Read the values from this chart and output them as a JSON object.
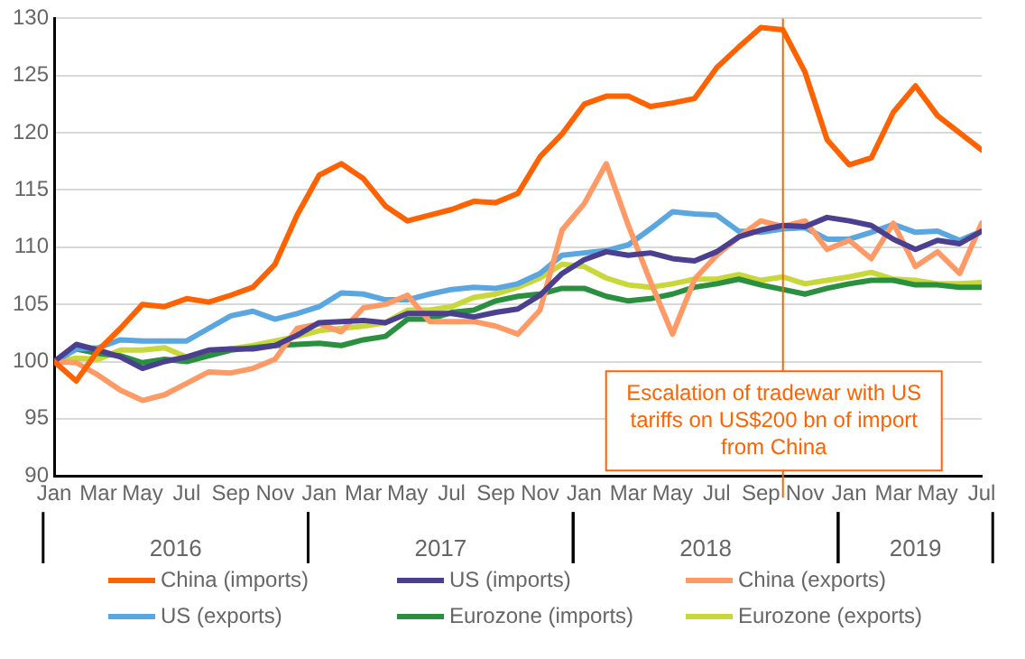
{
  "chart_data": {
    "type": "line",
    "x": [
      "2016-01",
      "2016-02",
      "2016-03",
      "2016-04",
      "2016-05",
      "2016-06",
      "2016-07",
      "2016-08",
      "2016-09",
      "2016-10",
      "2016-11",
      "2016-12",
      "2017-01",
      "2017-02",
      "2017-03",
      "2017-04",
      "2017-05",
      "2017-06",
      "2017-07",
      "2017-08",
      "2017-09",
      "2017-10",
      "2017-11",
      "2017-12",
      "2018-01",
      "2018-02",
      "2018-03",
      "2018-04",
      "2018-05",
      "2018-06",
      "2018-07",
      "2018-08",
      "2018-09",
      "2018-10",
      "2018-11",
      "2018-12",
      "2019-01",
      "2019-02",
      "2019-03",
      "2019-04",
      "2019-05",
      "2019-06",
      "2019-07"
    ],
    "series": [
      {
        "name": "China (imports)",
        "color": "#ff6200",
        "values": [
          100,
          98.3,
          101,
          102.9,
          105,
          104.8,
          105.5,
          105.2,
          105.8,
          106.5,
          108.5,
          112.8,
          116.3,
          117.3,
          116,
          113.6,
          112.3,
          112.8,
          113.3,
          114,
          113.9,
          114.7,
          117.9,
          119.9,
          122.5,
          123.2,
          123.2,
          122.3,
          122.6,
          123,
          125.7,
          127.5,
          129.2,
          129,
          125.3,
          119.4,
          117.2,
          117.8,
          121.8,
          124.1,
          121.5,
          120,
          118.5
        ]
      },
      {
        "name": "US (imports)",
        "color": "#4b3f8f",
        "values": [
          100,
          101.5,
          101,
          100.4,
          99.4,
          100,
          100.4,
          101,
          101.1,
          101.1,
          101.4,
          102.3,
          103.4,
          103.5,
          103.6,
          103.4,
          104.2,
          104.2,
          104.2,
          103.9,
          104.3,
          104.6,
          105.8,
          107.7,
          108.9,
          109.6,
          109.3,
          109.5,
          109,
          108.8,
          109.6,
          110.9,
          111.5,
          111.9,
          111.8,
          112.6,
          112.3,
          111.9,
          110.7,
          109.8,
          110.6,
          110.3,
          111.4
        ]
      },
      {
        "name": "China (exports)",
        "color": "#ff9a66",
        "values": [
          100,
          99.9,
          98.8,
          97.5,
          96.6,
          97.1,
          98.1,
          99.1,
          99,
          99.4,
          100.2,
          102.9,
          103.3,
          102.6,
          104.7,
          105,
          105.8,
          103.5,
          103.5,
          103.5,
          103.1,
          102.4,
          104.5,
          111.5,
          113.8,
          117.3,
          111.9,
          107,
          102.4,
          107.2,
          109.3,
          110.9,
          112.3,
          111.8,
          112.3,
          109.8,
          110.6,
          109,
          112.1,
          108.3,
          109.6,
          107.7,
          112.1
        ]
      },
      {
        "name": "US (exports)",
        "color": "#5aa6e0",
        "values": [
          100,
          101.1,
          101.2,
          101.9,
          101.8,
          101.8,
          101.8,
          102.9,
          104,
          104.4,
          103.7,
          104.2,
          104.8,
          106,
          105.9,
          105.4,
          105.4,
          105.9,
          106.3,
          106.5,
          106.4,
          106.8,
          107.7,
          109.3,
          109.5,
          109.7,
          110.2,
          111.6,
          113.1,
          112.9,
          112.8,
          111.4,
          111.3,
          111.6,
          111.7,
          110.7,
          110.7,
          111.3,
          112,
          111.3,
          111.4,
          110.6,
          111.4
        ]
      },
      {
        "name": "Eurozone (imports)",
        "color": "#2a8f3e",
        "values": [
          100,
          101.1,
          100.7,
          100.5,
          99.9,
          100.2,
          100,
          100.5,
          101,
          101.2,
          101.4,
          101.5,
          101.6,
          101.4,
          101.9,
          102.2,
          103.7,
          103.7,
          104.3,
          104.5,
          105.3,
          105.7,
          105.9,
          106.4,
          106.4,
          105.7,
          105.3,
          105.5,
          105.9,
          106.5,
          106.8,
          107.2,
          106.7,
          106.3,
          105.9,
          106.4,
          106.8,
          107.1,
          107.1,
          106.7,
          106.7,
          106.5,
          106.5
        ]
      },
      {
        "name": "Eurozone (exports)",
        "color": "#c8d83a",
        "values": [
          100,
          100.3,
          100.2,
          101,
          101,
          101.2,
          100.4,
          100.8,
          101.1,
          101.4,
          101.8,
          102.2,
          102.7,
          102.9,
          103.1,
          103.4,
          104.5,
          104.5,
          104.8,
          105.6,
          105.9,
          106.5,
          107.3,
          108.5,
          108.3,
          107.3,
          106.7,
          106.5,
          106.8,
          107.2,
          107.2,
          107.6,
          107.1,
          107.4,
          106.8,
          107.1,
          107.4,
          107.8,
          107.2,
          107.1,
          106.8,
          106.8,
          106.9
        ]
      }
    ],
    "xlim": [
      "2016-01",
      "2019-07"
    ],
    "xticks": [
      {
        "value": "2016-01",
        "label": "Jan"
      },
      {
        "value": "2016-03",
        "label": "Mar"
      },
      {
        "value": "2016-05",
        "label": "May"
      },
      {
        "value": "2016-07",
        "label": "Jul"
      },
      {
        "value": "2016-09",
        "label": "Sep"
      },
      {
        "value": "2016-11",
        "label": "Nov"
      },
      {
        "value": "2017-01",
        "label": "Jan"
      },
      {
        "value": "2017-03",
        "label": "Mar"
      },
      {
        "value": "2017-05",
        "label": "May"
      },
      {
        "value": "2017-07",
        "label": "Jul"
      },
      {
        "value": "2017-09",
        "label": "Sep"
      },
      {
        "value": "2017-11",
        "label": "Nov"
      },
      {
        "value": "2018-01",
        "label": "Jan"
      },
      {
        "value": "2018-03",
        "label": "Mar"
      },
      {
        "value": "2018-05",
        "label": "May"
      },
      {
        "value": "2018-07",
        "label": "Jul"
      },
      {
        "value": "2018-09",
        "label": "Sep"
      },
      {
        "value": "2018-11",
        "label": "Nov"
      },
      {
        "value": "2019-01",
        "label": "Jan"
      },
      {
        "value": "2019-03",
        "label": "Mar"
      },
      {
        "value": "2019-05",
        "label": "May"
      },
      {
        "value": "2019-07",
        "label": "Jul"
      }
    ],
    "ylim": [
      90,
      130
    ],
    "yticks": [
      90,
      95,
      100,
      105,
      110,
      115,
      120,
      125,
      130
    ],
    "grid": "y",
    "legend": "bottom",
    "ref_lines": [
      {
        "axis": "x",
        "value": "2018-10",
        "label": "Escalation of tradewar with US tariffs on US$200 bn of import from China",
        "color": "#ff6200"
      }
    ],
    "annotations": [
      "2016",
      "2017",
      "2018",
      "2019"
    ]
  }
}
